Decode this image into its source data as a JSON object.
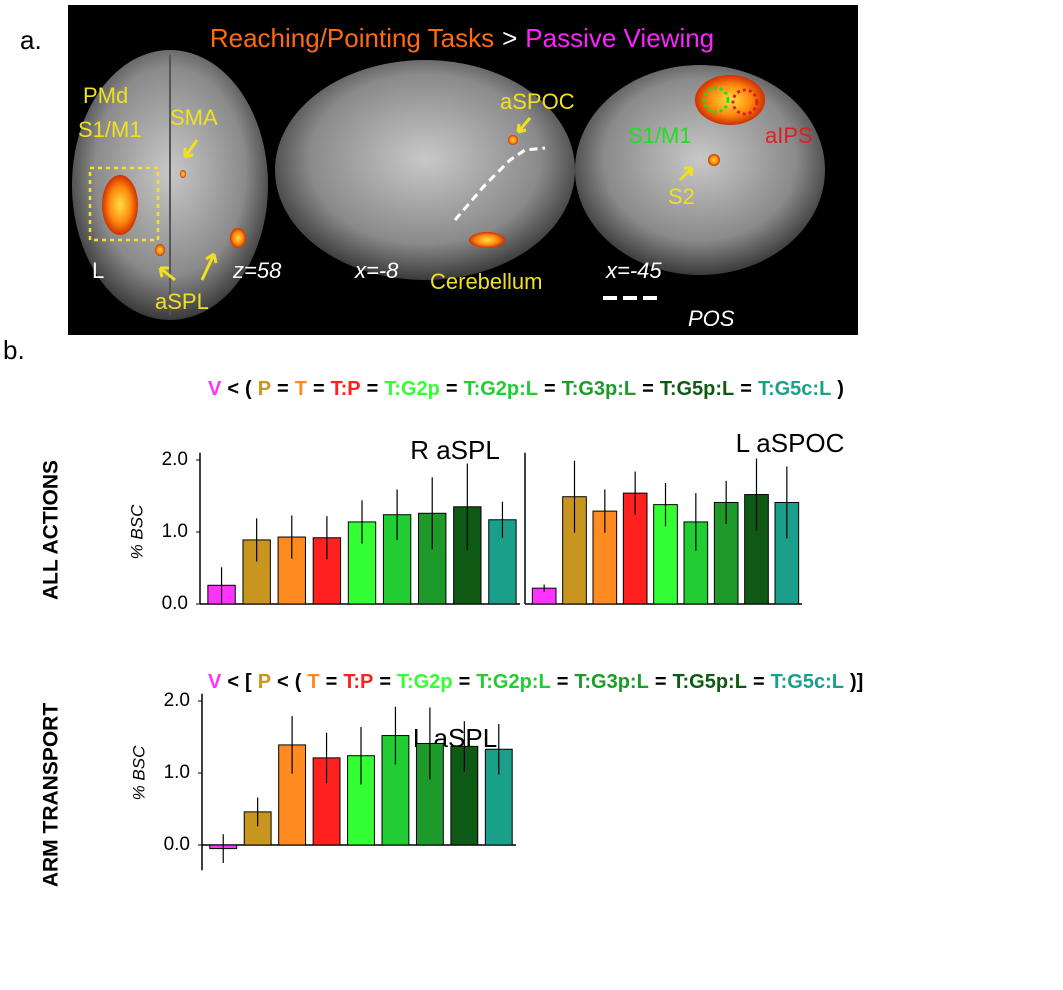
{
  "panel_a": {
    "label": "a.",
    "title_parts": [
      {
        "text": "Reaching/Pointing Tasks",
        "color": "#ff6a10"
      },
      {
        "text": ">",
        "color": "#ffffff"
      },
      {
        "text": "Passive Viewing",
        "color": "#ff22ff"
      }
    ],
    "labels": [
      {
        "text": "PMd",
        "color": "#f0e020"
      },
      {
        "text": "S1/M1",
        "color": "#f0e020"
      },
      {
        "text": "SMA",
        "color": "#f0e020"
      },
      {
        "text": "L",
        "color": "#ffffff"
      },
      {
        "text": "z=58",
        "color": "#ffffff"
      },
      {
        "text": "aSPL",
        "color": "#f0e020"
      },
      {
        "text": "x=-8",
        "color": "#ffffff"
      },
      {
        "text": "aSPOC",
        "color": "#f0e020"
      },
      {
        "text": "Cerebellum",
        "color": "#f0e020"
      },
      {
        "text": "x=-45",
        "color": "#ffffff"
      },
      {
        "text": "S1/M1",
        "color": "#22dd22"
      },
      {
        "text": "aIPS",
        "color": "#dd2020"
      },
      {
        "text": "S2",
        "color": "#f0e020"
      },
      {
        "text": "POS",
        "color": "#ffffff"
      }
    ]
  },
  "panel_b": {
    "label": "b.",
    "row_labels": [
      "ALL ACTIONS",
      "ARM TRANSPORT"
    ],
    "formulas": [
      [
        {
          "text": "V",
          "color": "#ff33ff"
        },
        {
          "text": "<",
          "color": "#000"
        },
        {
          "text": "(",
          "color": "#000"
        },
        {
          "text": "P",
          "color": "#c8961e"
        },
        {
          "text": "=",
          "color": "#000"
        },
        {
          "text": "T",
          "color": "#ff8a1f"
        },
        {
          "text": "=",
          "color": "#000"
        },
        {
          "text": "T:P",
          "color": "#ff2020"
        },
        {
          "text": "=",
          "color": "#000"
        },
        {
          "text": "T:G2p",
          "color": "#33ff33"
        },
        {
          "text": "=",
          "color": "#000"
        },
        {
          "text": "T:G2p:L",
          "color": "#22cc33"
        },
        {
          "text": "=",
          "color": "#000"
        },
        {
          "text": "T:G3p:L",
          "color": "#1e9a2a"
        },
        {
          "text": "=",
          "color": "#000"
        },
        {
          "text": "T:G5p:L",
          "color": "#0e5a14"
        },
        {
          "text": "=",
          "color": "#000"
        },
        {
          "text": "T:G5c:L",
          "color": "#1aa08a"
        },
        {
          "text": ")",
          "color": "#000"
        }
      ],
      [
        {
          "text": "V",
          "color": "#ff33ff"
        },
        {
          "text": "<",
          "color": "#000"
        },
        {
          "text": "[",
          "color": "#000"
        },
        {
          "text": "P",
          "color": "#c8961e"
        },
        {
          "text": "<",
          "color": "#000"
        },
        {
          "text": "(",
          "color": "#000"
        },
        {
          "text": "T",
          "color": "#ff8a1f"
        },
        {
          "text": "=",
          "color": "#000"
        },
        {
          "text": "T:P",
          "color": "#ff2020"
        },
        {
          "text": "=",
          "color": "#000"
        },
        {
          "text": "T:G2p",
          "color": "#33ff33"
        },
        {
          "text": "=",
          "color": "#000"
        },
        {
          "text": "T:G2p:L",
          "color": "#22cc33"
        },
        {
          "text": "=",
          "color": "#000"
        },
        {
          "text": "T:G3p:L",
          "color": "#1e9a2a"
        },
        {
          "text": "=",
          "color": "#000"
        },
        {
          "text": "T:G5p:L",
          "color": "#0e5a14"
        },
        {
          "text": "=",
          "color": "#000"
        },
        {
          "text": "T:G5c:L",
          "color": "#1aa08a"
        },
        {
          "text": ")]",
          "color": "#000"
        }
      ]
    ]
  },
  "chart_data": [
    {
      "type": "bar",
      "title": "R aSPL",
      "ylabel": "% BSC",
      "values": [
        0.26,
        0.89,
        0.93,
        0.92,
        1.14,
        1.24,
        1.26,
        1.35,
        1.17
      ],
      "errors": [
        0.25,
        0.3,
        0.3,
        0.3,
        0.3,
        0.35,
        0.5,
        0.6,
        0.25
      ],
      "colors": [
        "#ff33ff",
        "#c8961e",
        "#ff8a1f",
        "#ff2020",
        "#33ff33",
        "#22cc33",
        "#1e9a2a",
        "#0e5a14",
        "#1aa08a"
      ],
      "ylim": [
        0,
        2.1
      ],
      "yticks": [
        {
          "value": 0,
          "label": "0.0"
        },
        {
          "value": 1,
          "label": "1.0"
        },
        {
          "value": 2,
          "label": "2.0"
        }
      ]
    },
    {
      "type": "bar",
      "title": "L aSPOC",
      "values": [
        0.22,
        1.49,
        1.29,
        1.54,
        1.38,
        1.14,
        1.41,
        1.52,
        1.41
      ],
      "errors": [
        0.05,
        0.5,
        0.3,
        0.3,
        0.3,
        0.4,
        0.3,
        0.5,
        0.5
      ],
      "colors": [
        "#ff33ff",
        "#c8961e",
        "#ff8a1f",
        "#ff2020",
        "#33ff33",
        "#22cc33",
        "#1e9a2a",
        "#0e5a14",
        "#1aa08a"
      ],
      "ylim": [
        0,
        2.1
      ]
    },
    {
      "type": "bar",
      "title": "L aSPL",
      "ylabel": "% BSC",
      "values": [
        -0.05,
        0.46,
        1.39,
        1.21,
        1.24,
        1.52,
        1.41,
        1.37,
        1.33
      ],
      "errors": [
        0.2,
        0.2,
        0.4,
        0.35,
        0.4,
        0.4,
        0.5,
        0.35,
        0.35
      ],
      "colors": [
        "#ff33ff",
        "#c8961e",
        "#ff8a1f",
        "#ff2020",
        "#33ff33",
        "#22cc33",
        "#1e9a2a",
        "#0e5a14",
        "#1aa08a"
      ],
      "ylim": [
        -0.35,
        2.1
      ],
      "yticks": [
        {
          "value": 0,
          "label": "0.0"
        },
        {
          "value": 1,
          "label": "1.0"
        },
        {
          "value": 2,
          "label": "2.0"
        }
      ]
    }
  ]
}
